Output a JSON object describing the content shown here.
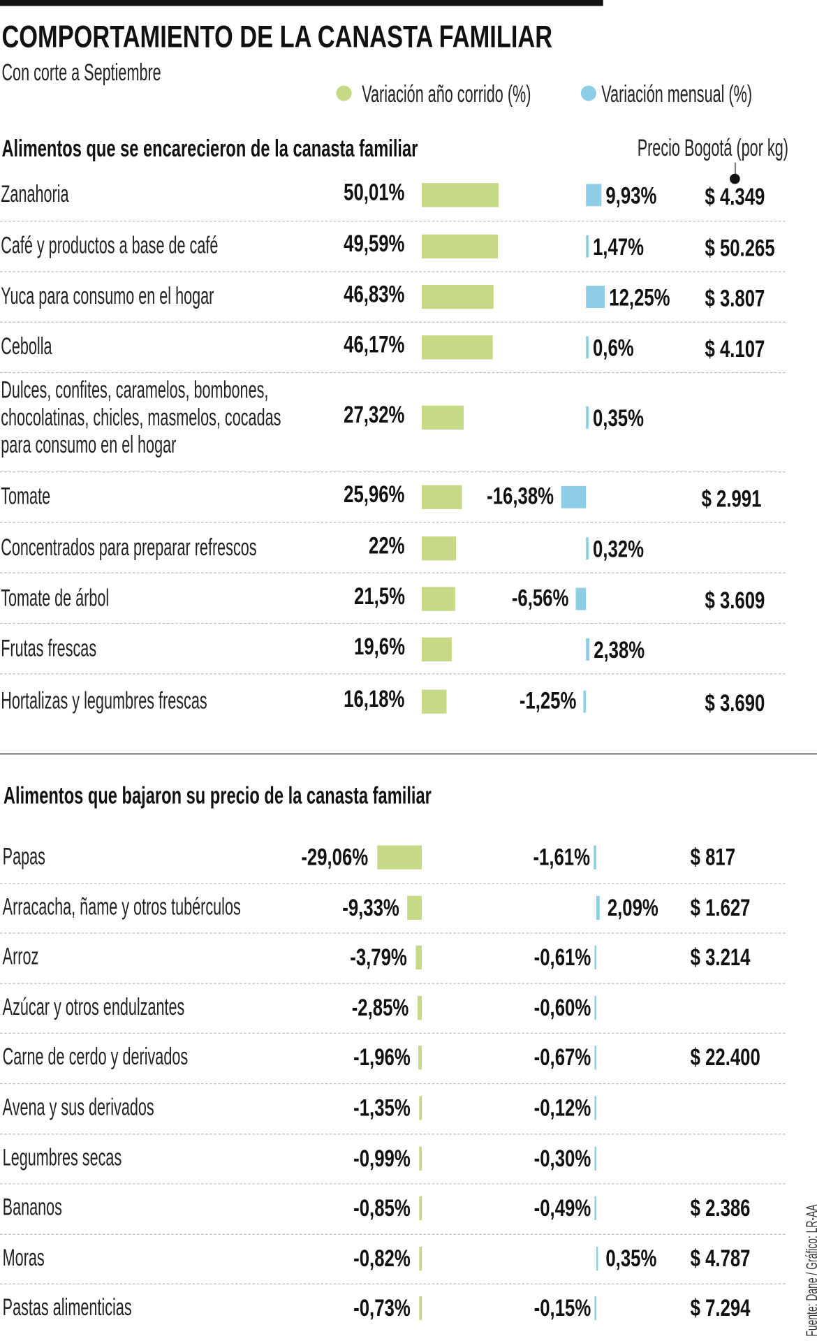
{
  "title": "COMPORTAMIENTO DE LA CANASTA FAMILIAR",
  "subtitle": "Con corte a Septiembre",
  "legend": [
    {
      "label": "Variación año corrido (%)",
      "color": "#c5d987"
    },
    {
      "label": "Variación mensual (%)",
      "color": "#8dcde6"
    }
  ],
  "price_header": "Precio Bogotá (por kg)",
  "source": "Fuente: Dane / Gráfico: LR-AA",
  "chart_data": [
    {
      "type": "bar",
      "title": "Alimentos que se encarecieron de la canasta familiar",
      "rows": [
        {
          "label": "Zanahoria",
          "anio": 50.01,
          "anio_text": "50,01%",
          "mensual": 9.93,
          "mensual_text": "9,93%",
          "precio": "$ 4.349"
        },
        {
          "label": "Café y productos a base de café",
          "anio": 49.59,
          "anio_text": "49,59%",
          "mensual": 1.47,
          "mensual_text": "1,47%",
          "precio": "$ 50.265"
        },
        {
          "label": "Yuca para consumo en el hogar",
          "anio": 46.83,
          "anio_text": "46,83%",
          "mensual": 12.25,
          "mensual_text": "12,25%",
          "precio": "$ 3.807"
        },
        {
          "label": "Cebolla",
          "anio": 46.17,
          "anio_text": "46,17%",
          "mensual": 0.6,
          "mensual_text": "0,6%",
          "precio": "$ 4.107"
        },
        {
          "label": "Dulces, confites, caramelos, bombones,\nchocolatinas, chicles, masmelos, cocadas\npara consumo en el hogar",
          "anio": 27.32,
          "anio_text": "27,32%",
          "mensual": 0.35,
          "mensual_text": "0,35%",
          "precio": null
        },
        {
          "label": "Tomate",
          "anio": 25.96,
          "anio_text": "25,96%",
          "mensual": -16.38,
          "mensual_text": "-16,38%",
          "precio": "$ 2.991"
        },
        {
          "label": "Concentrados para preparar refrescos",
          "anio": 22,
          "anio_text": "22%",
          "mensual": 0.32,
          "mensual_text": "0,32%",
          "precio": null
        },
        {
          "label": "Tomate de árbol",
          "anio": 21.5,
          "anio_text": "21,5%",
          "mensual": -6.56,
          "mensual_text": "-6,56%",
          "precio": "$ 3.609"
        },
        {
          "label": "Frutas frescas",
          "anio": 19.6,
          "anio_text": "19,6%",
          "mensual": 2.38,
          "mensual_text": "2,38%",
          "precio": null
        },
        {
          "label": "Hortalizas y legumbres frescas",
          "anio": 16.18,
          "anio_text": "16,18%",
          "mensual": -1.25,
          "mensual_text": "-1,25%",
          "precio": "$ 3.690"
        }
      ]
    },
    {
      "type": "bar",
      "title": "Alimentos que bajaron su precio de la canasta familiar",
      "rows": [
        {
          "label": "Papas",
          "anio": -29.06,
          "anio_text": "-29,06%",
          "mensual": -1.61,
          "mensual_text": "-1,61%",
          "precio": "$ 817"
        },
        {
          "label": "Arracacha, ñame y otros tubérculos",
          "anio": -9.33,
          "anio_text": "-9,33%",
          "mensual": 2.09,
          "mensual_text": "2,09%",
          "precio": "$ 1.627"
        },
        {
          "label": "Arroz",
          "anio": -3.79,
          "anio_text": "-3,79%",
          "mensual": -0.61,
          "mensual_text": "-0,61%",
          "precio": "$ 3.214"
        },
        {
          "label": "Azúcar y otros endulzantes",
          "anio": -2.85,
          "anio_text": "-2,85%",
          "mensual": -0.6,
          "mensual_text": "-0,60%",
          "precio": null
        },
        {
          "label": "Carne de cerdo y derivados",
          "anio": -1.96,
          "anio_text": "-1,96%",
          "mensual": -0.67,
          "mensual_text": "-0,67%",
          "precio": "$ 22.400"
        },
        {
          "label": "Avena y sus derivados",
          "anio": -1.35,
          "anio_text": "-1,35%",
          "mensual": -0.12,
          "mensual_text": "-0,12%",
          "precio": null
        },
        {
          "label": "Legumbres secas",
          "anio": -0.99,
          "anio_text": "-0,99%",
          "mensual": -0.3,
          "mensual_text": "-0,30%",
          "precio": null
        },
        {
          "label": "Bananos",
          "anio": -0.85,
          "anio_text": "-0,85%",
          "mensual": -0.49,
          "mensual_text": "-0,49%",
          "precio": "$ 2.386"
        },
        {
          "label": "Moras",
          "anio": -0.82,
          "anio_text": "-0,82%",
          "mensual": 0.35,
          "mensual_text": "0,35%",
          "precio": "$ 4.787"
        },
        {
          "label": "Pastas alimenticias",
          "anio": -0.73,
          "anio_text": "-0,73%",
          "mensual": -0.15,
          "mensual_text": "-0,15%",
          "precio": "$ 7.294"
        }
      ]
    }
  ]
}
